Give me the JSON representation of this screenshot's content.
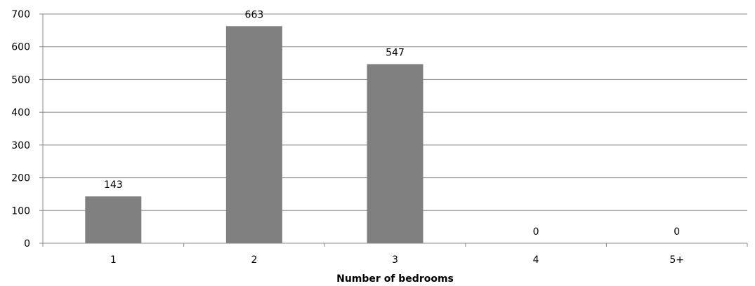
{
  "chart_data": {
    "type": "bar",
    "categories": [
      "1",
      "2",
      "3",
      "4",
      "5+"
    ],
    "values": [
      143,
      663,
      547,
      0,
      0
    ],
    "data_labels": [
      "143",
      "663",
      "547",
      "0",
      "0"
    ],
    "xlabel": "Number of bedrooms",
    "ylabel": "",
    "ylim": [
      0,
      700
    ],
    "yticks": [
      "0",
      "100",
      "200",
      "300",
      "400",
      "500",
      "600",
      "700"
    ],
    "grid": true,
    "legend": "none",
    "bar_color": "#808080",
    "grid_color": "#888888"
  }
}
